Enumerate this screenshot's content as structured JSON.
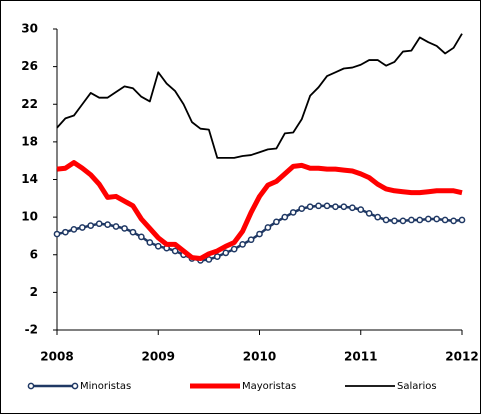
{
  "chart_data": {
    "type": "line",
    "x": [
      2008,
      2008.083,
      2008.167,
      2008.25,
      2008.333,
      2008.417,
      2008.5,
      2008.583,
      2008.667,
      2008.75,
      2008.833,
      2008.917,
      2009,
      2009.083,
      2009.167,
      2009.25,
      2009.333,
      2009.417,
      2009.5,
      2009.583,
      2009.667,
      2009.75,
      2009.833,
      2009.917,
      2010,
      2010.083,
      2010.167,
      2010.25,
      2010.333,
      2010.417,
      2010.5,
      2010.583,
      2010.667,
      2010.75,
      2010.833,
      2010.917,
      2011,
      2011.083,
      2011.167,
      2011.25,
      2011.333,
      2011.417,
      2011.5,
      2011.583,
      2011.667,
      2011.75,
      2011.833,
      2011.917,
      2012
    ],
    "series": [
      {
        "name": "Minoristas",
        "color": "#1f3864",
        "marker": "circle",
        "values": [
          8.2,
          8.4,
          8.7,
          8.9,
          9.1,
          9.3,
          9.2,
          9,
          8.8,
          8.4,
          7.9,
          7.3,
          6.9,
          6.7,
          6.4,
          6,
          5.6,
          5.4,
          5.5,
          5.8,
          6.2,
          6.6,
          7.1,
          7.6,
          8.2,
          8.9,
          9.5,
          10,
          10.5,
          10.9,
          11.1,
          11.2,
          11.2,
          11.1,
          11.1,
          11,
          10.8,
          10.4,
          10,
          9.7,
          9.6,
          9.6,
          9.7,
          9.7,
          9.8,
          9.8,
          9.7,
          9.6,
          9.7
        ]
      },
      {
        "name": "Mayoristas",
        "color": "#ff0000",
        "values": [
          15.1,
          15.2,
          15.8,
          15.2,
          14.5,
          13.5,
          12.1,
          12.2,
          11.7,
          11.2,
          9.8,
          8.8,
          7.8,
          7.1,
          7.1,
          6.4,
          5.7,
          5.6,
          6.1,
          6.4,
          6.9,
          7.3,
          8.5,
          10.5,
          12.2,
          13.4,
          13.8,
          14.6,
          15.4,
          15.5,
          15.2,
          15.2,
          15.1,
          15.1,
          15,
          14.9,
          14.6,
          14.2,
          13.5,
          13,
          12.8,
          12.7,
          12.6,
          12.6,
          12.7,
          12.8,
          12.8,
          12.8,
          12.6
        ]
      },
      {
        "name": "Salarios",
        "color": "#000000",
        "values": [
          19.5,
          20.5,
          20.8,
          22,
          23.2,
          22.7,
          22.7,
          23.3,
          23.9,
          23.7,
          22.8,
          22.3,
          25.4,
          24.2,
          23.4,
          22,
          20.1,
          19.4,
          19.3,
          16.3,
          16.3,
          16.3,
          16.5,
          16.6,
          16.9,
          17.2,
          17.3,
          18.9,
          19,
          20.4,
          22.9,
          23.8,
          25,
          25.4,
          25.8,
          25.9,
          26.2,
          26.7,
          26.7,
          26.1,
          26.5,
          27.6,
          27.7,
          29.1,
          28.6,
          28.2,
          27.4,
          28,
          29.5
        ]
      }
    ],
    "xlim": [
      2008,
      2012
    ],
    "xticks": [
      2008,
      2009,
      2010,
      2011,
      2012
    ],
    "ylim": [
      -2,
      30
    ],
    "yticks": [
      -2,
      2,
      6,
      10,
      14,
      18,
      22,
      26,
      30
    ],
    "legend": "bottom"
  }
}
